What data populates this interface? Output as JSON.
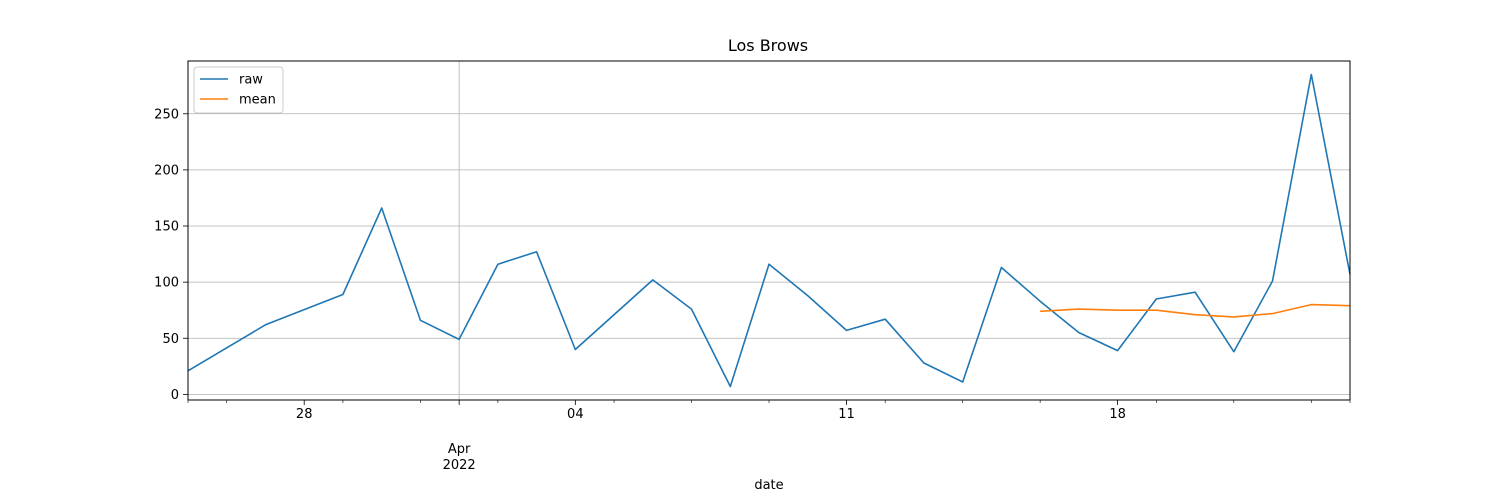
{
  "chart_data": {
    "type": "line",
    "title": "Los Brows",
    "xlabel": "date",
    "ylabel": "",
    "ylim": [
      -5,
      297
    ],
    "xlim": [
      "2022-03-25",
      "2022-04-24"
    ],
    "y_ticks": [
      0,
      50,
      100,
      150,
      200,
      250
    ],
    "x_major_ticks": [
      {
        "date": "2022-03-28",
        "label": "28"
      },
      {
        "date": "2022-04-01",
        "label": "Apr\n2022"
      },
      {
        "date": "2022-04-04",
        "label": "04"
      },
      {
        "date": "2022-04-11",
        "label": "11"
      },
      {
        "date": "2022-04-18",
        "label": "18"
      }
    ],
    "x_vertical_gridline_date": "2022-04-01",
    "horizontal_grid": true,
    "legend_position": "top-left",
    "series": [
      {
        "name": "raw",
        "color": "#1f77b4",
        "points": [
          [
            "2022-03-25",
            21
          ],
          [
            "2022-03-27",
            62
          ],
          [
            "2022-03-29",
            89
          ],
          [
            "2022-03-30",
            166
          ],
          [
            "2022-03-31",
            66
          ],
          [
            "2022-04-01",
            49
          ],
          [
            "2022-04-02",
            116
          ],
          [
            "2022-04-03",
            127
          ],
          [
            "2022-04-04",
            40
          ],
          [
            "2022-04-06",
            102
          ],
          [
            "2022-04-07",
            76
          ],
          [
            "2022-04-08",
            7
          ],
          [
            "2022-04-09",
            116
          ],
          [
            "2022-04-10",
            88
          ],
          [
            "2022-04-11",
            57
          ],
          [
            "2022-04-12",
            67
          ],
          [
            "2022-04-13",
            28
          ],
          [
            "2022-04-14",
            11
          ],
          [
            "2022-04-15",
            113
          ],
          [
            "2022-04-16",
            83
          ],
          [
            "2022-04-17",
            55
          ],
          [
            "2022-04-18",
            39
          ],
          [
            "2022-04-19",
            85
          ],
          [
            "2022-04-20",
            91
          ],
          [
            "2022-04-21",
            38
          ],
          [
            "2022-04-22",
            101
          ],
          [
            "2022-04-23",
            285
          ],
          [
            "2022-04-24",
            107
          ]
        ]
      },
      {
        "name": "mean",
        "color": "#ff7f0e",
        "points": [
          [
            "2022-04-16",
            74
          ],
          [
            "2022-04-17",
            76
          ],
          [
            "2022-04-18",
            75
          ],
          [
            "2022-04-19",
            75
          ],
          [
            "2022-04-20",
            71
          ],
          [
            "2022-04-21",
            69
          ],
          [
            "2022-04-22",
            72
          ],
          [
            "2022-04-23",
            80
          ],
          [
            "2022-04-24",
            79
          ]
        ]
      }
    ]
  }
}
